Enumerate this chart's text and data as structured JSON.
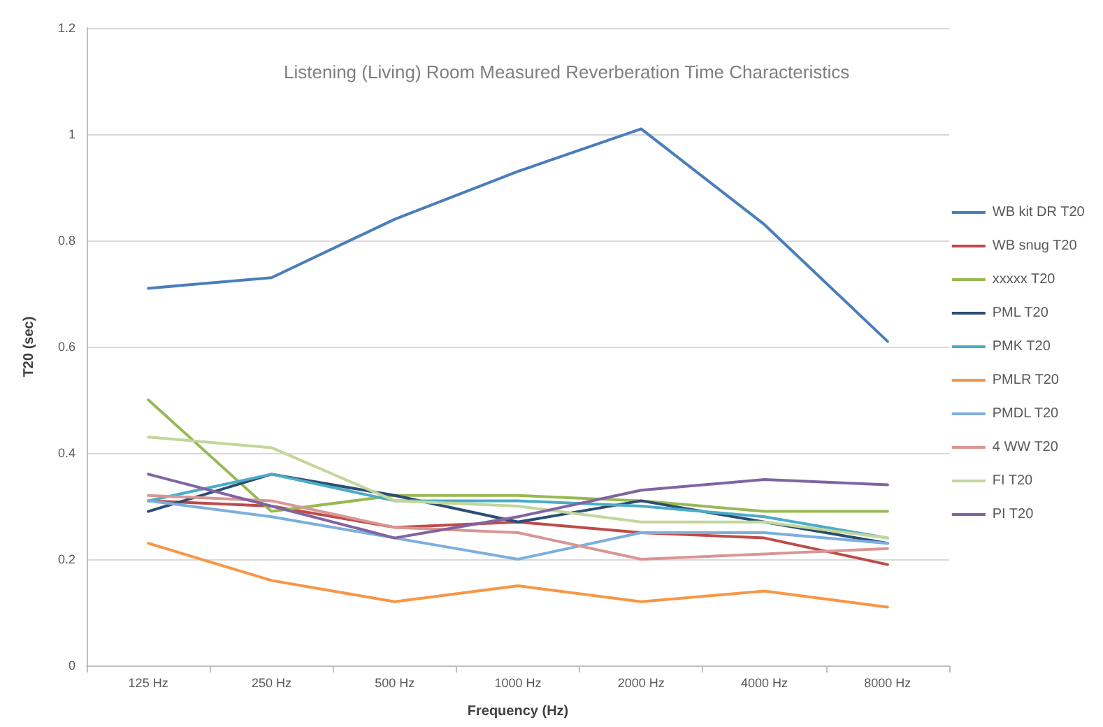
{
  "chart_data": {
    "type": "line",
    "title": "Listening (Living) Room Measured Reverberation Time Characteristics",
    "xlabel": "Frequency (Hz)",
    "ylabel": "T20 (sec)",
    "categories": [
      "125 Hz",
      "250 Hz",
      "500 Hz",
      "1000 Hz",
      "2000 Hz",
      "4000 Hz",
      "8000 Hz"
    ],
    "ylim": [
      0,
      1.2
    ],
    "yticks": [
      0,
      0.2,
      0.4,
      0.6,
      0.8,
      1,
      1.2
    ],
    "grid": "y",
    "legend": "right",
    "marker": "none",
    "line_style": "solid",
    "series": [
      {
        "name": "WB kit DR T20",
        "color": "#4a7ebb",
        "values": [
          0.71,
          0.73,
          0.84,
          0.93,
          1.01,
          0.83,
          0.61
        ]
      },
      {
        "name": "WB snug T20",
        "color": "#be4b48",
        "values": [
          0.31,
          0.3,
          0.26,
          0.27,
          0.25,
          0.24,
          0.19
        ]
      },
      {
        "name": "xxxxx T20",
        "color": "#98b954",
        "values": [
          0.5,
          0.29,
          0.32,
          0.32,
          0.31,
          0.29,
          0.29
        ]
      },
      {
        "name": "PML T20",
        "color": "#2c4d75",
        "values": [
          0.29,
          0.36,
          0.32,
          0.27,
          0.31,
          0.27,
          0.23
        ]
      },
      {
        "name": "PMK T20",
        "color": "#4bacc6",
        "values": [
          0.31,
          0.36,
          0.31,
          0.31,
          0.3,
          0.28,
          0.24
        ]
      },
      {
        "name": "PMLR T20",
        "color": "#f79646",
        "values": [
          0.23,
          0.16,
          0.12,
          0.15,
          0.12,
          0.14,
          0.11
        ]
      },
      {
        "name": "PMDL T20",
        "color": "#7cafdd",
        "values": [
          0.31,
          0.28,
          0.24,
          0.2,
          0.25,
          0.25,
          0.23
        ]
      },
      {
        "name": "4 WW T20",
        "color": "#d99694",
        "values": [
          0.32,
          0.31,
          0.26,
          0.25,
          0.2,
          0.21,
          0.22
        ]
      },
      {
        "name": "FI T20",
        "color": "#c3d69b",
        "values": [
          0.43,
          0.41,
          0.31,
          0.3,
          0.27,
          0.27,
          0.24
        ]
      },
      {
        "name": "PI T20",
        "color": "#8064a2",
        "values": [
          0.36,
          0.3,
          0.24,
          0.28,
          0.33,
          0.35,
          0.34
        ]
      }
    ]
  }
}
